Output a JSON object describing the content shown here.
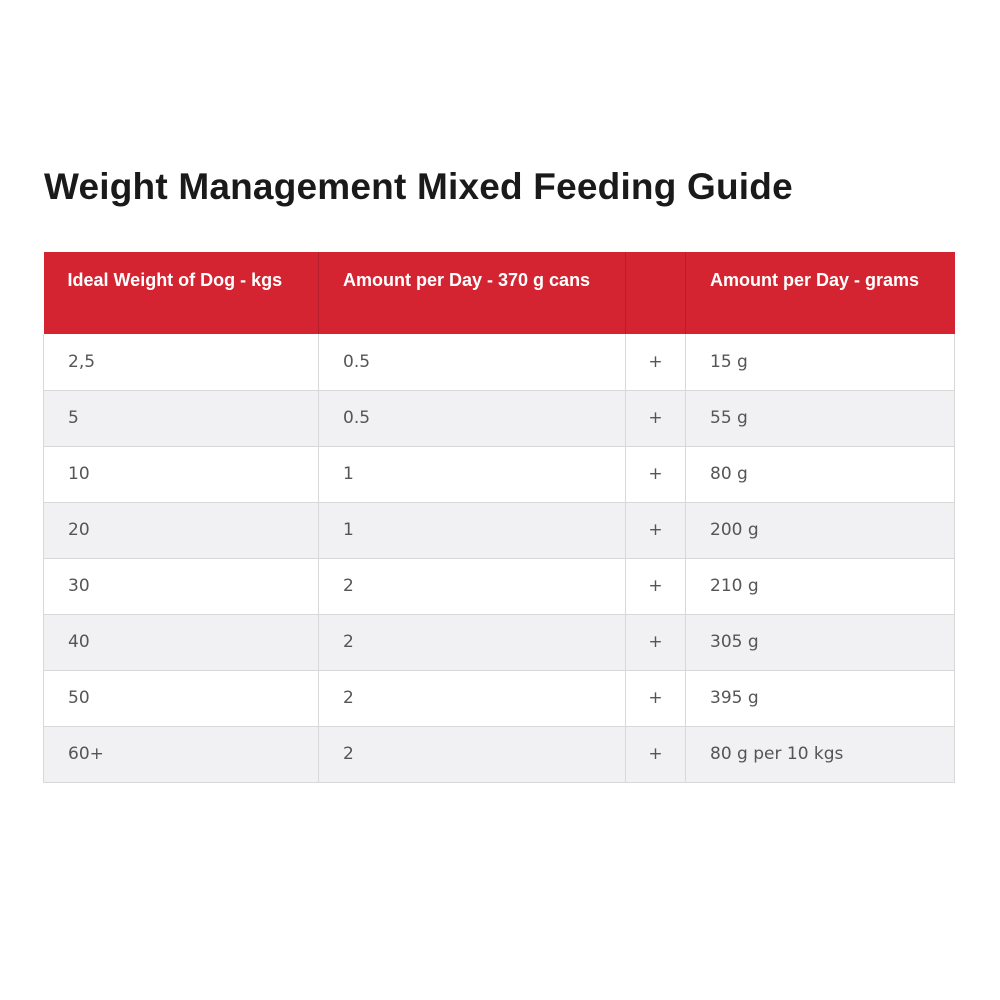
{
  "title": "Weight Management Mixed Feeding Guide",
  "table": {
    "headers": [
      "Ideal Weight of Dog - kgs",
      "Amount per Day - 370 g cans",
      "",
      "Amount per Day - grams"
    ],
    "rows": [
      [
        "2,5",
        "0.5",
        "+",
        "15 g"
      ],
      [
        "5",
        "0.5",
        "+",
        "55 g"
      ],
      [
        "10",
        "1",
        "+",
        "80 g"
      ],
      [
        "20",
        "1",
        "+",
        "200 g"
      ],
      [
        "30",
        "2",
        "+",
        "210 g"
      ],
      [
        "40",
        "2",
        "+",
        "305 g"
      ],
      [
        "50",
        "2",
        "+",
        "395 g"
      ],
      [
        "60+",
        "2",
        "+",
        "80 g per 10 kgs"
      ]
    ]
  },
  "colors": {
    "header_bg": "#d42431",
    "header_text": "#ffffff",
    "row_alt": "#f1f1f3",
    "border": "#d8d8d8"
  }
}
